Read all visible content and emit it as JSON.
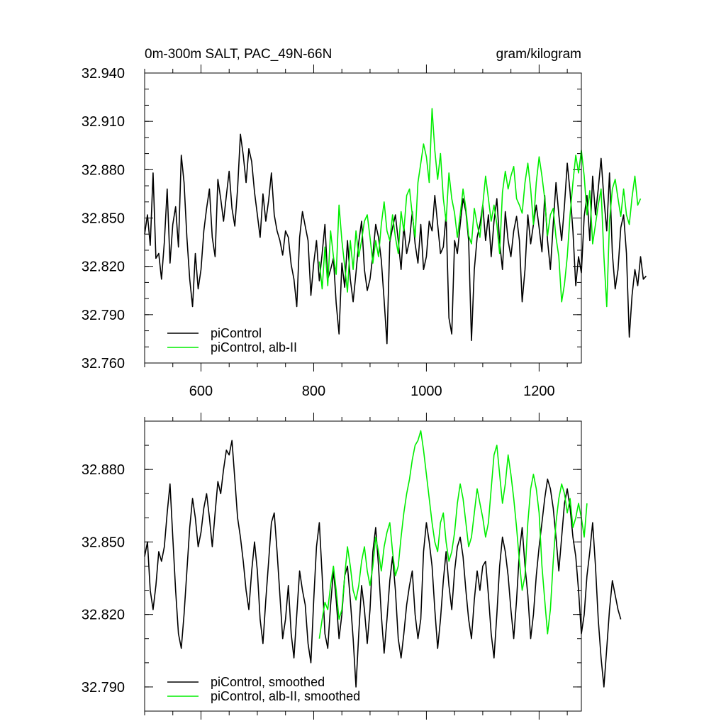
{
  "colors": {
    "ctrl": "#000000",
    "alb": "#00ee00"
  },
  "chart_data": [
    {
      "type": "line",
      "title_left": "0m-300m SALT, PAC_49N-66N",
      "title_right": "gram/kilogram",
      "xlim": [
        500,
        1275
      ],
      "ylim": [
        32.76,
        32.94
      ],
      "xticks": [
        600,
        800,
        1000,
        1200
      ],
      "yticks": [
        32.76,
        32.79,
        32.82,
        32.85,
        32.88,
        32.91,
        32.94
      ],
      "xtick_labels": [
        "600",
        "800",
        "1000",
        "1200"
      ],
      "ytick_labels": [
        "32.760",
        "32.790",
        "32.820",
        "32.850",
        "32.880",
        "32.910",
        "32.940"
      ],
      "legend": [
        "piControl",
        "piControl, alb-II"
      ],
      "series": [
        {
          "name": "piControl",
          "color": "ctrl",
          "x_start": 500,
          "x_step": 5,
          "values": [
            32.84,
            32.852,
            32.833,
            32.878,
            32.825,
            32.828,
            32.812,
            32.835,
            32.868,
            32.822,
            32.846,
            32.857,
            32.832,
            32.889,
            32.872,
            32.838,
            32.812,
            32.795,
            32.828,
            32.806,
            32.818,
            32.842,
            32.856,
            32.868,
            32.838,
            32.826,
            32.874,
            32.862,
            32.848,
            32.864,
            32.879,
            32.856,
            32.845,
            32.868,
            32.902,
            32.889,
            32.872,
            32.893,
            32.885,
            32.866,
            32.852,
            32.838,
            32.865,
            32.848,
            32.861,
            32.878,
            32.852,
            32.842,
            32.836,
            32.827,
            32.842,
            32.838,
            32.821,
            32.812,
            32.795,
            32.838,
            32.854,
            32.845,
            32.836,
            32.802,
            32.822,
            32.836,
            32.811,
            32.828,
            32.846,
            32.812,
            32.818,
            32.825,
            32.797,
            32.778,
            32.822,
            32.807,
            32.836,
            32.812,
            32.798,
            32.816,
            32.835,
            32.848,
            32.818,
            32.805,
            32.812,
            32.827,
            32.846,
            32.838,
            32.824,
            32.799,
            32.772,
            32.835,
            32.844,
            32.852,
            32.836,
            32.818,
            32.845,
            32.828,
            32.836,
            32.854,
            32.834,
            32.822,
            32.846,
            32.818,
            32.826,
            32.848,
            32.842,
            32.864,
            32.846,
            32.828,
            32.832,
            32.852,
            32.788,
            32.778,
            32.836,
            32.828,
            32.846,
            32.862,
            32.854,
            32.836,
            32.774,
            32.818,
            32.838,
            32.846,
            32.858,
            32.836,
            32.852,
            32.826,
            32.848,
            32.862,
            32.835,
            32.818,
            32.854,
            32.836,
            32.826,
            32.842,
            32.851,
            32.836,
            32.798,
            32.818,
            32.852,
            32.834,
            32.846,
            32.858,
            32.844,
            32.829,
            32.864,
            32.836,
            32.818,
            32.846,
            32.872,
            32.852,
            32.836,
            32.858,
            32.884,
            32.866,
            32.842,
            32.808,
            32.826,
            32.816,
            32.851,
            32.864,
            32.836,
            32.876,
            32.852,
            32.868,
            32.887,
            32.862,
            32.842,
            32.878,
            32.828,
            32.806,
            32.818,
            32.844,
            32.852,
            32.828,
            32.776,
            32.802,
            32.818,
            32.808,
            32.826,
            32.812,
            32.814
          ]
        },
        {
          "name": "piControl, alb-II",
          "color": "alb",
          "x_start": 810,
          "x_step": 5,
          "values": [
            32.823,
            32.806,
            32.832,
            32.808,
            32.842,
            32.826,
            32.815,
            32.858,
            32.836,
            32.82,
            32.804,
            32.836,
            32.818,
            32.842,
            32.826,
            32.836,
            32.848,
            32.852,
            32.838,
            32.822,
            32.836,
            32.826,
            32.846,
            32.86,
            32.842,
            32.836,
            32.852,
            32.838,
            32.828,
            32.854,
            32.842,
            32.864,
            32.868,
            32.852,
            32.838,
            32.872,
            32.884,
            32.896,
            32.888,
            32.872,
            32.918,
            32.892,
            32.874,
            32.89,
            32.862,
            32.848,
            32.878,
            32.862,
            32.853,
            32.838,
            32.852,
            32.868,
            32.856,
            32.839,
            32.834,
            32.856,
            32.846,
            32.838,
            32.858,
            32.876,
            32.862,
            32.848,
            32.858,
            32.846,
            32.828,
            32.866,
            32.879,
            32.868,
            32.876,
            32.882,
            32.862,
            32.858,
            32.853,
            32.872,
            32.884,
            32.868,
            32.846,
            32.872,
            32.888,
            32.876,
            32.862,
            32.839,
            32.852,
            32.856,
            32.838,
            32.826,
            32.798,
            32.809,
            32.826,
            32.852,
            32.872,
            32.889,
            32.878,
            32.892,
            32.876,
            32.852,
            32.867,
            32.834,
            32.846,
            32.858,
            32.868,
            32.826,
            32.795,
            32.848,
            32.868,
            32.874,
            32.862,
            32.851,
            32.868,
            32.852,
            32.846,
            32.863,
            32.876,
            32.858,
            32.862
          ]
        }
      ]
    },
    {
      "type": "line",
      "xlim": [
        500,
        1275
      ],
      "ylim": [
        32.78,
        32.9
      ],
      "xticks": [
        600,
        800,
        1000,
        1200
      ],
      "yticks": [
        32.79,
        32.82,
        32.85,
        32.88
      ],
      "ytick_labels": [
        "32.790",
        "32.820",
        "32.850",
        "32.880"
      ],
      "legend": [
        "piControl, smoothed",
        "piControl, alb-II, smoothed"
      ],
      "series": [
        {
          "name": "piControl, smoothed",
          "color": "ctrl",
          "x_start": 500,
          "x_step": 5,
          "values": [
            32.844,
            32.85,
            32.83,
            32.822,
            32.832,
            32.846,
            32.842,
            32.848,
            32.862,
            32.874,
            32.852,
            32.83,
            32.812,
            32.806,
            32.82,
            32.838,
            32.856,
            32.868,
            32.86,
            32.848,
            32.854,
            32.864,
            32.87,
            32.86,
            32.848,
            32.862,
            32.875,
            32.87,
            32.88,
            32.888,
            32.886,
            32.892,
            32.876,
            32.86,
            32.852,
            32.842,
            32.83,
            32.822,
            32.838,
            32.85,
            32.838,
            32.818,
            32.808,
            32.826,
            32.842,
            32.858,
            32.862,
            32.846,
            32.828,
            32.81,
            32.818,
            32.832,
            32.812,
            32.802,
            32.82,
            32.838,
            32.83,
            32.824,
            32.808,
            32.8,
            32.826,
            32.848,
            32.858,
            32.836,
            32.812,
            32.806,
            32.824,
            32.838,
            32.826,
            32.81,
            32.82,
            32.836,
            32.84,
            32.826,
            32.81,
            32.79,
            32.812,
            32.832,
            32.822,
            32.808,
            32.822,
            32.846,
            32.856,
            32.84,
            32.82,
            32.804,
            32.818,
            32.834,
            32.844,
            32.83,
            32.81,
            32.802,
            32.812,
            32.824,
            32.832,
            32.838,
            32.82,
            32.81,
            32.818,
            32.846,
            32.858,
            32.85,
            32.84,
            32.822,
            32.806,
            32.818,
            32.834,
            32.846,
            32.832,
            32.822,
            32.838,
            32.848,
            32.852,
            32.844,
            32.83,
            32.818,
            32.81,
            32.826,
            32.838,
            32.83,
            32.84,
            32.842,
            32.828,
            32.812,
            32.802,
            32.82,
            32.84,
            32.852,
            32.846,
            32.836,
            32.822,
            32.81,
            32.826,
            32.846,
            32.856,
            32.84,
            32.828,
            32.81,
            32.82,
            32.836,
            32.848,
            32.858,
            32.868,
            32.876,
            32.872,
            32.864,
            32.852,
            32.838,
            32.852,
            32.866,
            32.872,
            32.864,
            32.852,
            32.844,
            32.83,
            32.812,
            32.82,
            32.836,
            32.846,
            32.858,
            32.84,
            32.818,
            32.802,
            32.79,
            32.806,
            32.822,
            32.834,
            32.828,
            32.822,
            32.818
          ]
        },
        {
          "name": "piControl, alb-II, smoothed",
          "color": "alb",
          "x_start": 810,
          "x_step": 5,
          "values": [
            32.81,
            32.818,
            32.825,
            32.822,
            32.832,
            32.84,
            32.83,
            32.818,
            32.822,
            32.836,
            32.848,
            32.84,
            32.83,
            32.826,
            32.832,
            32.842,
            32.848,
            32.838,
            32.832,
            32.84,
            32.852,
            32.846,
            32.838,
            32.848,
            32.854,
            32.858,
            32.846,
            32.836,
            32.84,
            32.852,
            32.862,
            32.87,
            32.876,
            32.884,
            32.89,
            32.892,
            32.896,
            32.888,
            32.878,
            32.868,
            32.858,
            32.85,
            32.846,
            32.858,
            32.862,
            32.85,
            32.842,
            32.846,
            32.854,
            32.866,
            32.874,
            32.868,
            32.858,
            32.848,
            32.852,
            32.862,
            32.872,
            32.866,
            32.86,
            32.852,
            32.858,
            32.872,
            32.886,
            32.89,
            32.878,
            32.866,
            32.874,
            32.886,
            32.878,
            32.868,
            32.856,
            32.842,
            32.83,
            32.836,
            32.858,
            32.872,
            32.878,
            32.872,
            32.862,
            32.84,
            32.826,
            32.812,
            32.822,
            32.842,
            32.858,
            32.868,
            32.874,
            32.87,
            32.862,
            32.868,
            32.856,
            32.86,
            32.866,
            32.86,
            32.852,
            32.866
          ]
        }
      ]
    }
  ]
}
